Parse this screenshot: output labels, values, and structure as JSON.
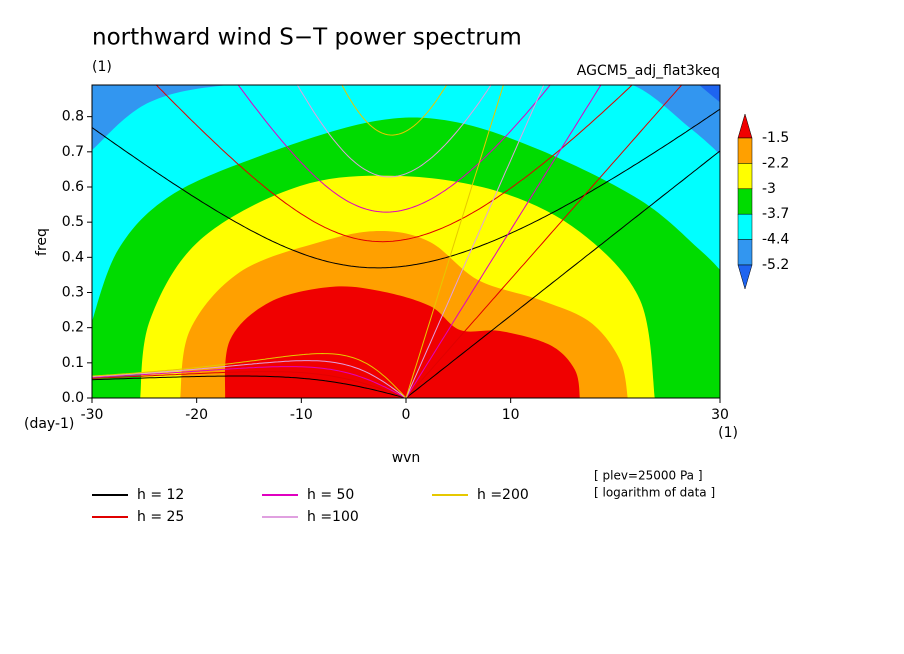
{
  "chart_data": {
    "type": "contour",
    "title": "northward wind S−T power spectrum",
    "subtitle": "(1)",
    "experiment": "AGCM5_adj_flat3keq",
    "xlabel": "wvn",
    "ylabel": "freq",
    "x_unit": "(1)",
    "y_unit": "(day-1)",
    "annotations": [
      "[ plev=25000 Pa ]",
      "[ logarithm of data ]"
    ],
    "xlim": [
      -30,
      30
    ],
    "xticks": [
      -30,
      -20,
      -10,
      0,
      10,
      30
    ],
    "ylim": [
      0,
      0.89
    ],
    "yticks": [
      {
        "value": 0,
        "label": "0.0"
      },
      0.1,
      0.2,
      0.3,
      0.4,
      0.5,
      0.6,
      0.7,
      0.8
    ],
    "colorbar": {
      "levels": [
        -1.5,
        -2.2,
        -3,
        -3.7,
        -4.4,
        -5.2
      ],
      "colors": [
        "#f00000",
        "#ffa000",
        "#ffff00",
        "#00dc00",
        "#00ffff",
        "#3296f0",
        "#1e64f0"
      ]
    },
    "series": [
      {
        "name": "h = 12",
        "h": 12,
        "color": "#000000"
      },
      {
        "name": "h = 25",
        "h": 25,
        "color": "#e00000"
      },
      {
        "name": "h = 50",
        "h": 50,
        "color": "#e000c0"
      },
      {
        "name": "h =100",
        "h": 100,
        "color": "#e0a0e0"
      },
      {
        "name": "h =200",
        "h": 200,
        "color": "#e6c800"
      }
    ]
  }
}
